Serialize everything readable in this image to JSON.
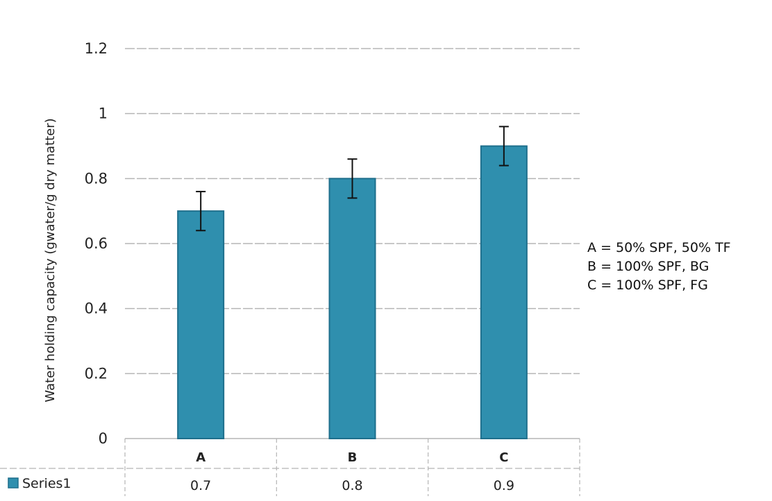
{
  "chart_data": {
    "type": "bar",
    "categories": [
      "A",
      "B",
      "C"
    ],
    "series": [
      {
        "name": "Series1",
        "values": [
          0.7,
          0.8,
          0.9
        ],
        "error": [
          0.06,
          0.06,
          0.06
        ],
        "color": "#2f8fae"
      }
    ],
    "data_table_values": [
      "0.7",
      "0.8",
      "0.9"
    ],
    "ylabel": "Water holding capacity (gwater/g dry matter)",
    "xlabel": "",
    "ylim": [
      0,
      1.2
    ],
    "yticks": [
      "0",
      "0.2",
      "0.4",
      "0.6",
      "0.8",
      "1",
      "1.2"
    ],
    "grid": true,
    "legend": {
      "placement": "bottom-left data table",
      "entries": [
        "Series1"
      ]
    },
    "annotations": [
      "A = 50% SPF, 50% TF",
      "B = 100% SPF, BG",
      "C = 100% SPF, FG"
    ]
  },
  "colors": {
    "bar_fill": "#2f8fae",
    "bar_stroke": "#1e6f8c",
    "grid": "#b5b5b5",
    "text": "#222222"
  }
}
